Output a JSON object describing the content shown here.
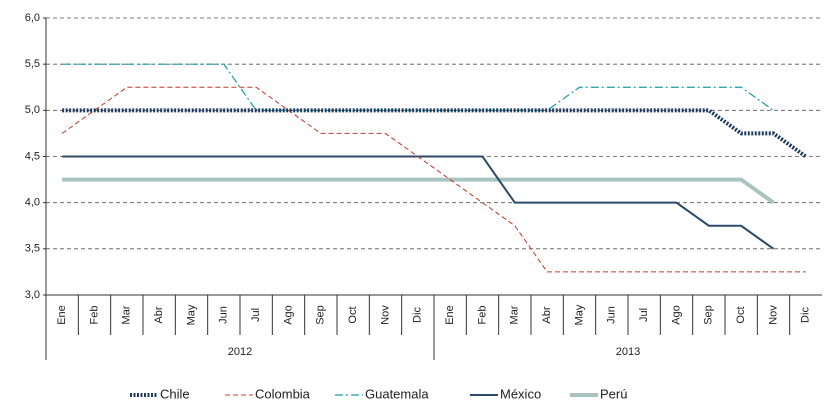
{
  "chart_data": {
    "type": "line",
    "categories": [
      "Ene",
      "Feb",
      "Mar",
      "Abr",
      "May",
      "Jun",
      "Jul",
      "Ago",
      "Sep",
      "Oct",
      "Nov",
      "Dic",
      "Ene",
      "Feb",
      "Mar",
      "Abr",
      "May",
      "Jun",
      "Jul",
      "Ago",
      "Sep",
      "Oct",
      "Nov",
      "Dic"
    ],
    "category_groups": [
      "2012",
      "2013"
    ],
    "ylim": [
      3,
      6
    ],
    "yticks": [
      {
        "value": 3,
        "label": "3,0"
      },
      {
        "value": 3.5,
        "label": "3,5"
      },
      {
        "value": 4,
        "label": "4,0"
      },
      {
        "value": 4.5,
        "label": "4,5"
      },
      {
        "value": 5,
        "label": "5,0"
      },
      {
        "value": 5.5,
        "label": "5,5"
      },
      {
        "value": 6,
        "label": "6,0"
      }
    ],
    "grid": true,
    "legend": "bottom",
    "series": [
      {
        "name": "Chile",
        "color": "#1f3a5f",
        "dash": "dotted",
        "values": [
          5,
          5,
          5,
          5,
          5,
          5,
          5,
          5,
          5,
          5,
          5,
          5,
          5,
          5,
          5,
          5,
          5,
          5,
          5,
          5,
          5,
          4.75,
          4.75,
          4.5
        ]
      },
      {
        "name": "Colombia",
        "color": "#c0392b",
        "dash": "dashed",
        "values": [
          4.75,
          5,
          5.25,
          5.25,
          5.25,
          5.25,
          5.25,
          5,
          4.75,
          4.75,
          4.75,
          4.5,
          4.25,
          4,
          3.75,
          3.25,
          3.25,
          3.25,
          3.25,
          3.25,
          3.25,
          3.25,
          3.25,
          3.25
        ]
      },
      {
        "name": "Guatemala",
        "color": "#1a9ba0",
        "dash": "dashdot",
        "values": [
          5.5,
          5.5,
          5.5,
          5.5,
          5.5,
          5.5,
          5,
          5,
          5,
          5,
          5,
          5,
          5,
          5,
          5,
          5,
          5.25,
          5.25,
          5.25,
          5.25,
          5.25,
          5.25,
          5,
          null
        ]
      },
      {
        "name": "México",
        "color": "#2e4a6b",
        "dash": "solid",
        "values": [
          4.5,
          4.5,
          4.5,
          4.5,
          4.5,
          4.5,
          4.5,
          4.5,
          4.5,
          4.5,
          4.5,
          4.5,
          4.5,
          4.5,
          4,
          4,
          4,
          4,
          4,
          4,
          3.75,
          3.75,
          3.5,
          null
        ]
      },
      {
        "name": "Perú",
        "color": "#a9c4c0",
        "dash": "thick",
        "values": [
          4.25,
          4.25,
          4.25,
          4.25,
          4.25,
          4.25,
          4.25,
          4.25,
          4.25,
          4.25,
          4.25,
          4.25,
          4.25,
          4.25,
          4.25,
          4.25,
          4.25,
          4.25,
          4.25,
          4.25,
          4.25,
          4.25,
          4,
          null
        ]
      }
    ]
  }
}
